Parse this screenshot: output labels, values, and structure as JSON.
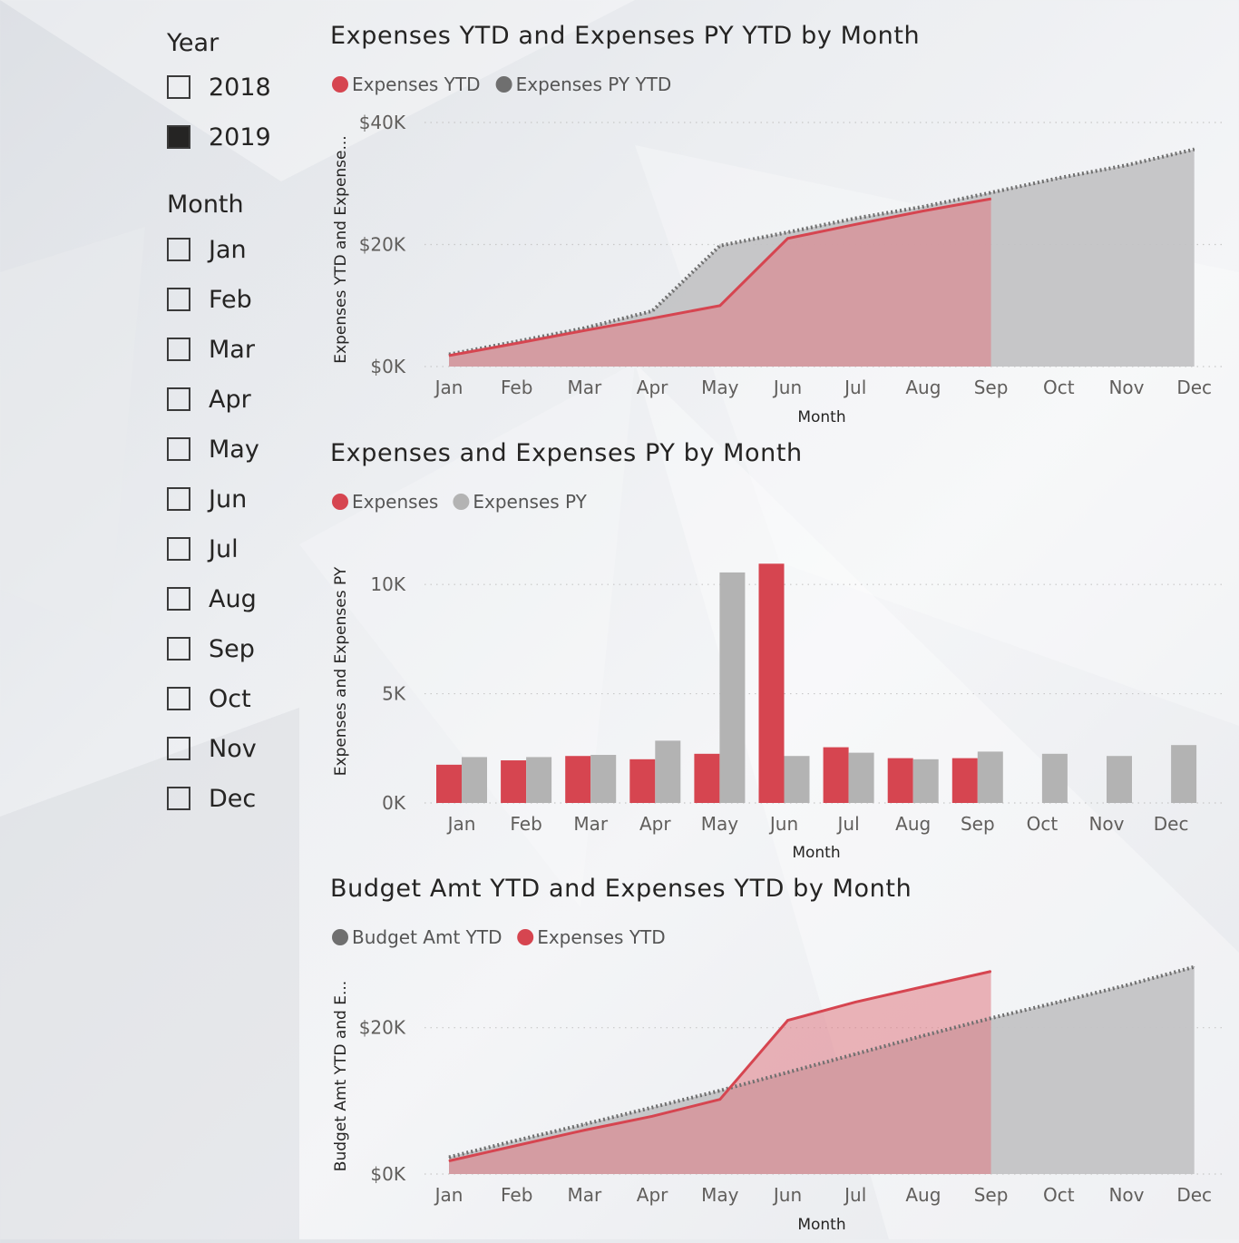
{
  "slicers": {
    "year": {
      "title": "Year",
      "items": [
        {
          "label": "2018",
          "checked": false
        },
        {
          "label": "2019",
          "checked": true
        }
      ]
    },
    "month": {
      "title": "Month",
      "items": [
        {
          "label": "Jan",
          "checked": false
        },
        {
          "label": "Feb",
          "checked": false
        },
        {
          "label": "Mar",
          "checked": false
        },
        {
          "label": "Apr",
          "checked": false
        },
        {
          "label": "May",
          "checked": false
        },
        {
          "label": "Jun",
          "checked": false
        },
        {
          "label": "Jul",
          "checked": false
        },
        {
          "label": "Aug",
          "checked": false
        },
        {
          "label": "Sep",
          "checked": false
        },
        {
          "label": "Oct",
          "checked": false
        },
        {
          "label": "Nov",
          "checked": false
        },
        {
          "label": "Dec",
          "checked": false
        }
      ]
    }
  },
  "colors": {
    "red": "#d64550",
    "dark_gray": "#6f6f6f",
    "light_gray": "#b3b3b3",
    "area_gray": "#c3c3c5"
  },
  "chart_data": [
    {
      "type": "area",
      "title": "Expenses YTD and Expenses PY YTD by Month",
      "xlabel": "Month",
      "ylabel": "Expenses YTD and Expense...",
      "categories": [
        "Jan",
        "Feb",
        "Mar",
        "Apr",
        "May",
        "Jun",
        "Jul",
        "Aug",
        "Sep",
        "Oct",
        "Nov",
        "Dec"
      ],
      "yticks": [
        0,
        20000,
        40000
      ],
      "ytick_labels": [
        "$0K",
        "$20K",
        "$40K"
      ],
      "ylim": [
        0,
        40000
      ],
      "legend_position": "top-left",
      "grid": true,
      "series": [
        {
          "name": "Expenses YTD",
          "color": "#d64550",
          "values": [
            1800,
            3800,
            5900,
            7900,
            10000,
            21000,
            23300,
            25500,
            27500,
            null,
            null,
            null
          ]
        },
        {
          "name": "Expenses PY YTD",
          "color": "#6f6f6f",
          "values": [
            2000,
            4100,
            6300,
            9100,
            19800,
            22000,
            24300,
            26200,
            28500,
            30900,
            33000,
            35600
          ]
        }
      ]
    },
    {
      "type": "bar",
      "title": "Expenses and Expenses PY by Month",
      "xlabel": "Month",
      "ylabel": "Expenses and Expenses PY",
      "categories": [
        "Jan",
        "Feb",
        "Mar",
        "Apr",
        "May",
        "Jun",
        "Jul",
        "Aug",
        "Sep",
        "Oct",
        "Nov",
        "Dec"
      ],
      "yticks": [
        0,
        5000,
        10000
      ],
      "ytick_labels": [
        "0K",
        "5K",
        "10K"
      ],
      "ylim": [
        0,
        12000
      ],
      "legend_position": "top-left",
      "grid": true,
      "series": [
        {
          "name": "Expenses",
          "color": "#d64550",
          "values": [
            1750,
            1950,
            2150,
            2000,
            2250,
            10950,
            2550,
            2050,
            2050,
            null,
            null,
            null
          ]
        },
        {
          "name": "Expenses PY",
          "color": "#b3b3b3",
          "values": [
            2100,
            2100,
            2200,
            2850,
            10550,
            2150,
            2300,
            2000,
            2350,
            2250,
            2150,
            2650
          ]
        }
      ]
    },
    {
      "type": "area",
      "title": "Budget Amt YTD and Expenses YTD by Month",
      "xlabel": "Month",
      "ylabel": "Budget Amt YTD and E...",
      "categories": [
        "Jan",
        "Feb",
        "Mar",
        "Apr",
        "May",
        "Jun",
        "Jul",
        "Aug",
        "Sep",
        "Oct",
        "Nov",
        "Dec"
      ],
      "yticks": [
        0,
        20000
      ],
      "ytick_labels": [
        "$0K",
        "$20K"
      ],
      "ylim": [
        0,
        30000
      ],
      "legend_position": "top-left",
      "grid": true,
      "series": [
        {
          "name": "Budget Amt YTD",
          "color": "#6f6f6f",
          "values": [
            2300,
            4600,
            6800,
            9100,
            11400,
            13900,
            16400,
            18900,
            21300,
            23500,
            25800,
            28300
          ]
        },
        {
          "name": "Expenses YTD",
          "color": "#d64550",
          "values": [
            1800,
            3900,
            6000,
            7900,
            10200,
            21000,
            23500,
            25600,
            27700,
            null,
            null,
            null
          ]
        }
      ]
    }
  ]
}
